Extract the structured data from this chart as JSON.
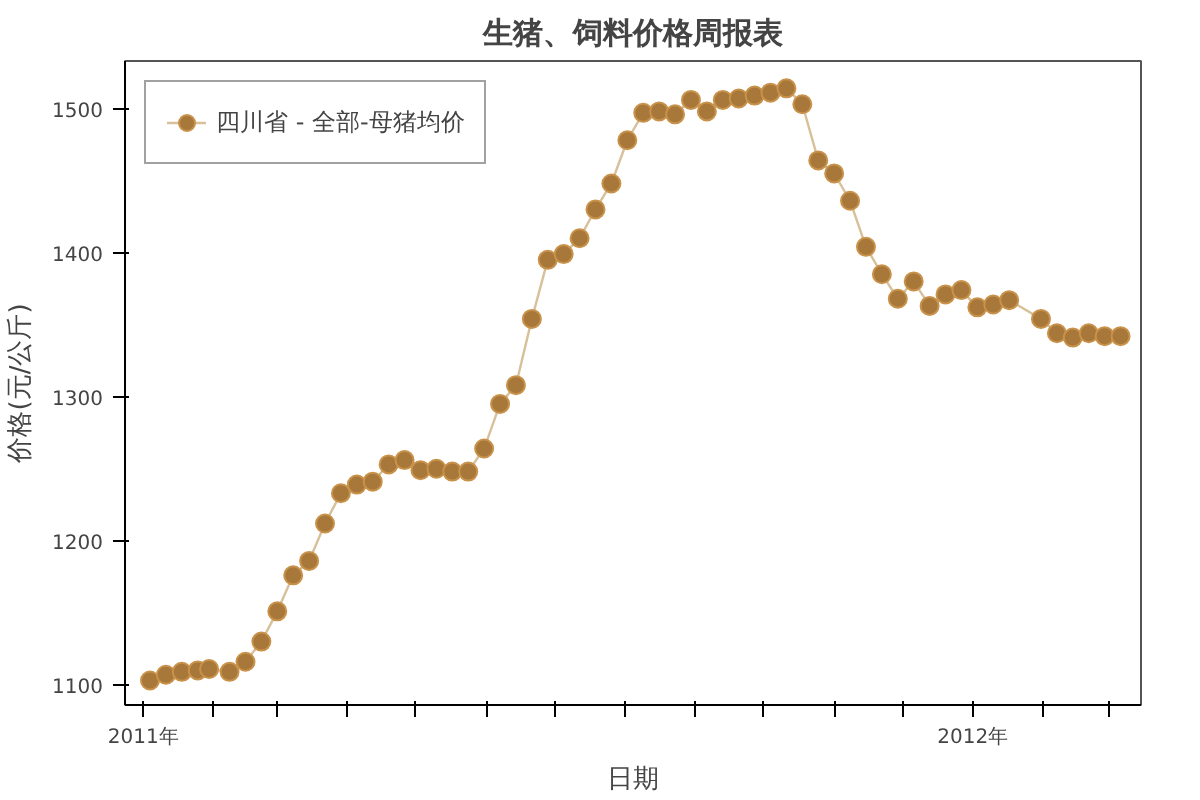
{
  "chart_data": {
    "type": "line",
    "title": "生猪、饲料价格周报表",
    "xlabel": "日期",
    "ylabel": "价格(元/公斤)",
    "x": [
      "2011-01-04",
      "2011-01-11",
      "2011-01-18",
      "2011-01-25",
      "2011-01-30",
      "2011-02-08",
      "2011-02-15",
      "2011-02-22",
      "2011-03-01",
      "2011-03-08",
      "2011-03-15",
      "2011-03-22",
      "2011-03-29",
      "2011-04-05",
      "2011-04-12",
      "2011-04-19",
      "2011-04-26",
      "2011-05-03",
      "2011-05-10",
      "2011-05-17",
      "2011-05-24",
      "2011-05-31",
      "2011-06-07",
      "2011-06-14",
      "2011-06-21",
      "2011-06-28",
      "2011-07-05",
      "2011-07-12",
      "2011-07-19",
      "2011-07-26",
      "2011-08-02",
      "2011-08-09",
      "2011-08-16",
      "2011-08-23",
      "2011-08-30",
      "2011-09-06",
      "2011-09-13",
      "2011-09-20",
      "2011-09-27",
      "2011-10-04",
      "2011-10-11",
      "2011-10-18",
      "2011-10-25",
      "2011-11-01",
      "2011-11-08",
      "2011-11-15",
      "2011-11-22",
      "2011-11-29",
      "2011-12-06",
      "2011-12-13",
      "2011-12-20",
      "2011-12-27",
      "2012-01-03",
      "2012-01-10",
      "2012-01-17",
      "2012-01-31",
      "2012-02-07",
      "2012-02-14",
      "2012-02-21",
      "2012-02-28",
      "2012-03-06"
    ],
    "series": [
      {
        "name": "四川省 - 全部-母猪均价",
        "color": "#a8773a",
        "values": [
          1103,
          1107,
          1109,
          1110,
          1111,
          1109,
          1116,
          1130,
          1151,
          1176,
          1186,
          1212,
          1233,
          1239,
          1241,
          1253,
          1256,
          1249,
          1250,
          1248,
          1248,
          1264,
          1295,
          1308,
          1354,
          1395,
          1399,
          1410,
          1430,
          1448,
          1478,
          1497,
          1498,
          1496,
          1506,
          1498,
          1506,
          1507,
          1509,
          1511,
          1514,
          1503,
          1464,
          1455,
          1436,
          1404,
          1385,
          1368,
          1380,
          1363,
          1371,
          1374,
          1362,
          1364,
          1367,
          1354,
          1344,
          1341,
          1344,
          1342,
          1342
        ]
      }
    ],
    "xlim": [
      "2010-12-24",
      "2012-03-15"
    ],
    "xticks": [
      {
        "value": "2011-01-01",
        "label": "2011年"
      },
      {
        "value": "2011-02-01",
        "label": null
      },
      {
        "value": "2011-03-01",
        "label": null
      },
      {
        "value": "2011-04-01",
        "label": null
      },
      {
        "value": "2011-05-01",
        "label": null
      },
      {
        "value": "2011-06-01",
        "label": null
      },
      {
        "value": "2011-07-01",
        "label": null
      },
      {
        "value": "2011-08-01",
        "label": null
      },
      {
        "value": "2011-09-01",
        "label": null
      },
      {
        "value": "2011-10-01",
        "label": null
      },
      {
        "value": "2011-11-01",
        "label": null
      },
      {
        "value": "2011-12-01",
        "label": null
      },
      {
        "value": "2012-01-01",
        "label": "2012年"
      },
      {
        "value": "2012-02-01",
        "label": null
      },
      {
        "value": "2012-03-01",
        "label": null
      }
    ],
    "ylim": [
      1086,
      1533
    ],
    "yticks": [
      1100,
      1200,
      1300,
      1400,
      1500
    ],
    "grid": false,
    "legend": "top left",
    "marker": "circle",
    "line_style": "solid"
  }
}
